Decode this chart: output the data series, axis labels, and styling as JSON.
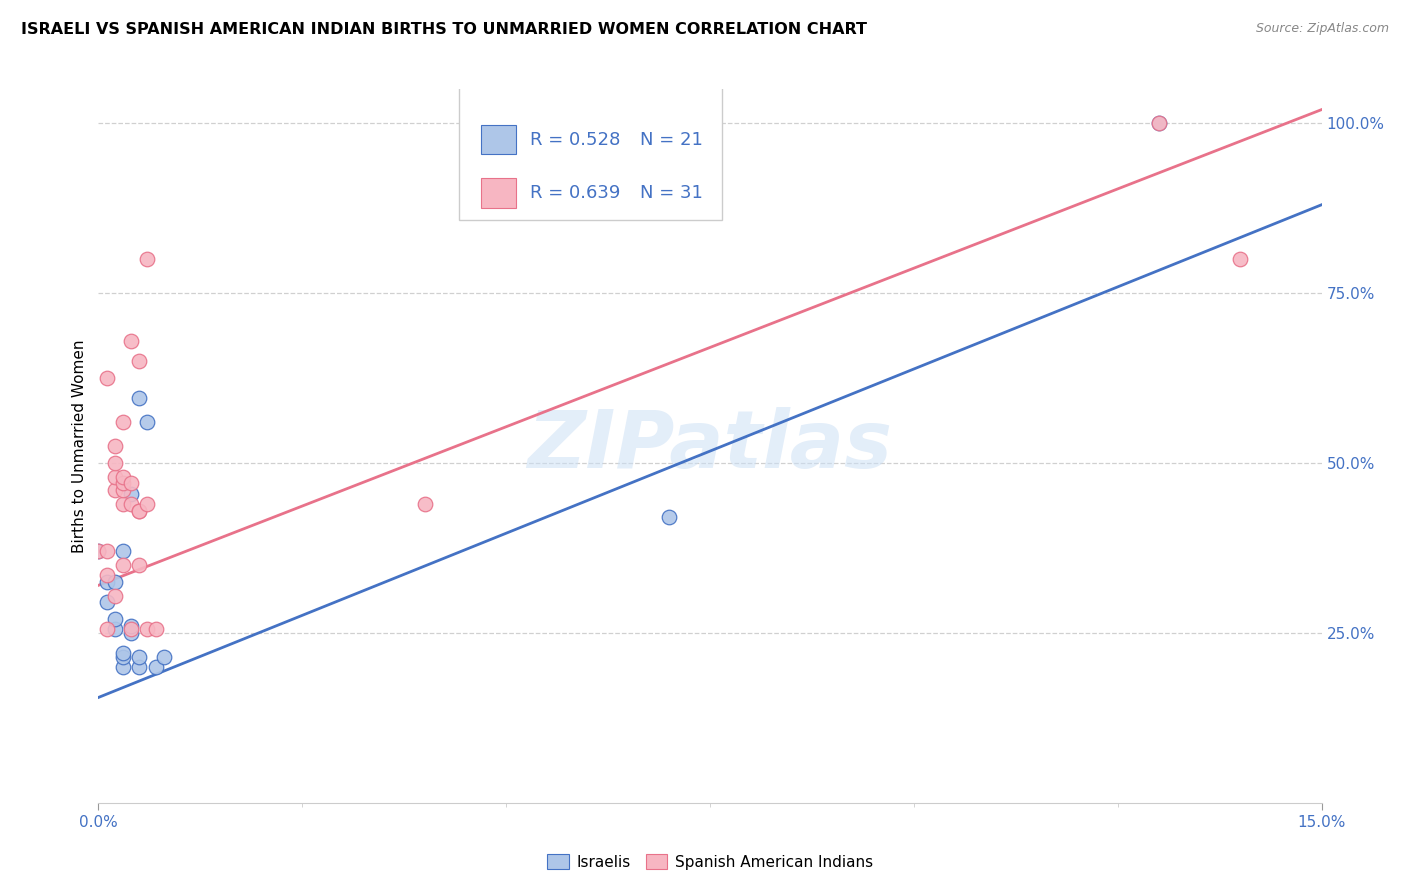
{
  "title": "ISRAELI VS SPANISH AMERICAN INDIAN BIRTHS TO UNMARRIED WOMEN CORRELATION CHART",
  "source": "Source: ZipAtlas.com",
  "ylabel": "Births to Unmarried Women",
  "background_color": "#ffffff",
  "watermark": "ZIPatlas",
  "israeli_color": "#aec6e8",
  "spanish_color": "#f7b6c2",
  "israeli_line_color": "#4472c4",
  "spanish_line_color": "#e8728a",
  "legend_R_israeli": "R = 0.528",
  "legend_N_israeli": "N = 21",
  "legend_R_spanish": "R = 0.639",
  "legend_N_spanish": "N = 31",
  "israeli_points_x": [
    0.0,
    0.001,
    0.001,
    0.002,
    0.002,
    0.002,
    0.003,
    0.003,
    0.003,
    0.003,
    0.004,
    0.004,
    0.004,
    0.005,
    0.005,
    0.005,
    0.006,
    0.007,
    0.008,
    0.07,
    0.13
  ],
  "israeli_points_y": [
    0.37,
    0.295,
    0.325,
    0.255,
    0.27,
    0.325,
    0.37,
    0.2,
    0.215,
    0.22,
    0.25,
    0.26,
    0.455,
    0.595,
    0.2,
    0.215,
    0.56,
    0.2,
    0.215,
    0.42,
    1.0
  ],
  "spanish_points_x": [
    0.0,
    0.001,
    0.001,
    0.001,
    0.001,
    0.002,
    0.002,
    0.002,
    0.002,
    0.002,
    0.003,
    0.003,
    0.003,
    0.003,
    0.003,
    0.003,
    0.004,
    0.004,
    0.004,
    0.004,
    0.005,
    0.005,
    0.005,
    0.005,
    0.006,
    0.006,
    0.006,
    0.007,
    0.04,
    0.13,
    0.14
  ],
  "spanish_points_y": [
    0.37,
    0.255,
    0.335,
    0.37,
    0.625,
    0.305,
    0.46,
    0.48,
    0.5,
    0.525,
    0.35,
    0.44,
    0.46,
    0.47,
    0.48,
    0.56,
    0.255,
    0.44,
    0.47,
    0.68,
    0.35,
    0.43,
    0.65,
    0.43,
    0.255,
    0.44,
    0.8,
    0.255,
    0.44,
    1.0,
    0.8
  ],
  "xlim": [
    0.0,
    0.15
  ],
  "ylim": [
    0.0,
    1.05
  ],
  "isr_line_x": [
    0.0,
    0.15
  ],
  "isr_line_y": [
    0.155,
    0.88
  ],
  "spa_line_x": [
    0.0,
    0.15
  ],
  "spa_line_y": [
    0.32,
    1.02
  ],
  "right_yticks": [
    0.25,
    0.5,
    0.75,
    1.0
  ],
  "right_yticklabels": [
    "25.0%",
    "50.0%",
    "75.0%",
    "100.0%"
  ],
  "axis_color": "#4472c4",
  "grid_color": "#d0d0d0",
  "title_fontsize": 11.5,
  "tick_fontsize": 11,
  "ylabel_fontsize": 11
}
